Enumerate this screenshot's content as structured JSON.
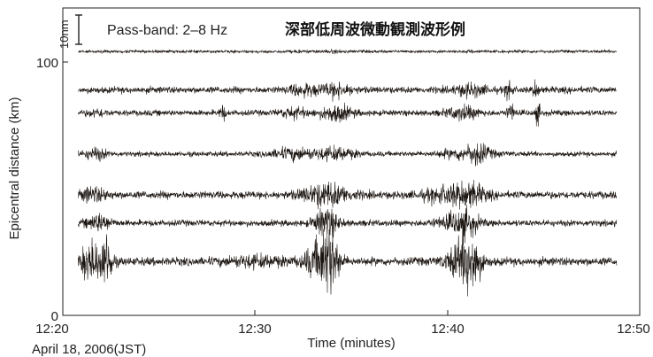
{
  "chart_data": {
    "type": "line",
    "title": "深部低周波微動観測波形例",
    "passband_label": "Pass-band: 2–8 Hz",
    "scale_bar_label": "10nm",
    "xlabel": "Time (minutes)",
    "ylabel": "Epicentral distance (km)",
    "date_label": "April 18, 2006(JST)",
    "x_ticks": [
      "12:20",
      "12:30",
      "12:40",
      "12:50"
    ],
    "xlim": [
      "12:20",
      "12:50"
    ],
    "y_ticks": [
      "0",
      "100"
    ],
    "ylim": [
      0,
      120
    ],
    "grid": false,
    "trace_color": "#1a1410",
    "trace_window": [
      "12:20.8",
      "12:48.8"
    ],
    "series": [
      {
        "distance_km": 103,
        "base_amp": 0.7,
        "bursts": [
          [
            12.2,
            0.3,
            0.4
          ],
          [
            14.2,
            0.5,
            0.6
          ],
          [
            21.5,
            0.4,
            0.5
          ],
          [
            13.5,
            0.3,
            0.3
          ]
        ]
      },
      {
        "distance_km": 88,
        "base_amp": 1.6,
        "bursts": [
          [
            12.5,
            0.7,
            1.5
          ],
          [
            14.2,
            0.8,
            1.8
          ],
          [
            21.2,
            0.8,
            1.5
          ],
          [
            23.2,
            0.15,
            3.5
          ],
          [
            24.6,
            0.15,
            2.5
          ]
        ]
      },
      {
        "distance_km": 79,
        "base_amp": 1.4,
        "bursts": [
          [
            1.8,
            0.5,
            1.0
          ],
          [
            8.3,
            0.15,
            2.5
          ],
          [
            12.0,
            0.7,
            1.5
          ],
          [
            14.2,
            0.8,
            2.5
          ],
          [
            20.8,
            0.8,
            2.0
          ],
          [
            23.3,
            0.2,
            2.8
          ],
          [
            24.7,
            0.15,
            3.0
          ]
        ]
      },
      {
        "distance_km": 63,
        "base_amp": 1.2,
        "bursts": [
          [
            1.7,
            0.6,
            2.0
          ],
          [
            12.0,
            1.2,
            2.0
          ],
          [
            14.2,
            1.0,
            2.2
          ],
          [
            21.0,
            1.3,
            2.0
          ],
          [
            21.6,
            0.5,
            2.5
          ]
        ]
      },
      {
        "distance_km": 47,
        "base_amp": 1.8,
        "bursts": [
          [
            1.5,
            0.8,
            1.5
          ],
          [
            13.7,
            1.2,
            2.8
          ],
          [
            20.0,
            1.2,
            1.8
          ],
          [
            21.2,
            0.8,
            2.3
          ]
        ]
      },
      {
        "distance_km": 36,
        "base_amp": 1.5,
        "bursts": [
          [
            1.9,
            0.6,
            2.5
          ],
          [
            13.7,
            0.6,
            4.5
          ],
          [
            21.0,
            0.6,
            3.2
          ],
          [
            20.3,
            1.0,
            1.8
          ]
        ]
      },
      {
        "distance_km": 21,
        "base_amp": 2.0,
        "bursts": [
          [
            1.5,
            0.6,
            4.5
          ],
          [
            2.3,
            0.3,
            5.5
          ],
          [
            13.4,
            0.8,
            4.5
          ],
          [
            13.9,
            0.4,
            5.5
          ],
          [
            20.8,
            0.8,
            4.5
          ],
          [
            21.3,
            0.4,
            5.0
          ],
          [
            10.0,
            1.5,
            1.0
          ]
        ]
      }
    ]
  }
}
